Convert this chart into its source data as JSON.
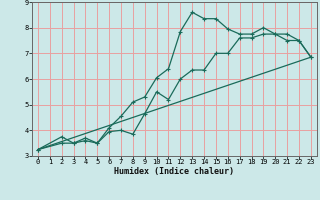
{
  "title": "",
  "xlabel": "Humidex (Indice chaleur)",
  "ylabel": "",
  "bg_color": "#cce8e8",
  "grid_color": "#e8a0a0",
  "line_color": "#1a6b5a",
  "xlim": [
    -0.5,
    23.5
  ],
  "ylim": [
    3,
    9
  ],
  "xticks": [
    0,
    1,
    2,
    3,
    4,
    5,
    6,
    7,
    8,
    9,
    10,
    11,
    12,
    13,
    14,
    15,
    16,
    17,
    18,
    19,
    20,
    21,
    22,
    23
  ],
  "yticks": [
    3,
    4,
    5,
    6,
    7,
    8,
    9
  ],
  "line1_x": [
    0,
    2,
    3,
    4,
    5,
    6,
    7,
    8,
    9,
    10,
    11,
    12,
    13,
    14,
    15,
    16,
    17,
    18,
    19,
    20,
    21,
    22,
    23
  ],
  "line1_y": [
    3.25,
    3.75,
    3.5,
    3.6,
    3.5,
    4.1,
    4.55,
    5.1,
    5.3,
    6.05,
    6.4,
    7.85,
    8.6,
    8.35,
    8.35,
    7.95,
    7.75,
    7.75,
    8.0,
    7.75,
    7.5,
    7.5,
    6.85
  ],
  "line2_x": [
    0,
    2,
    3,
    4,
    5,
    6,
    7,
    8,
    9,
    10,
    11,
    12,
    13,
    14,
    15,
    16,
    17,
    18,
    19,
    20,
    21,
    22,
    23
  ],
  "line2_y": [
    3.25,
    3.5,
    3.5,
    3.7,
    3.5,
    3.95,
    4.0,
    3.85,
    4.65,
    5.5,
    5.2,
    6.0,
    6.35,
    6.35,
    7.0,
    7.0,
    7.6,
    7.6,
    7.75,
    7.75,
    7.75,
    7.5,
    6.85
  ],
  "line3_x": [
    0,
    23
  ],
  "line3_y": [
    3.25,
    6.85
  ]
}
